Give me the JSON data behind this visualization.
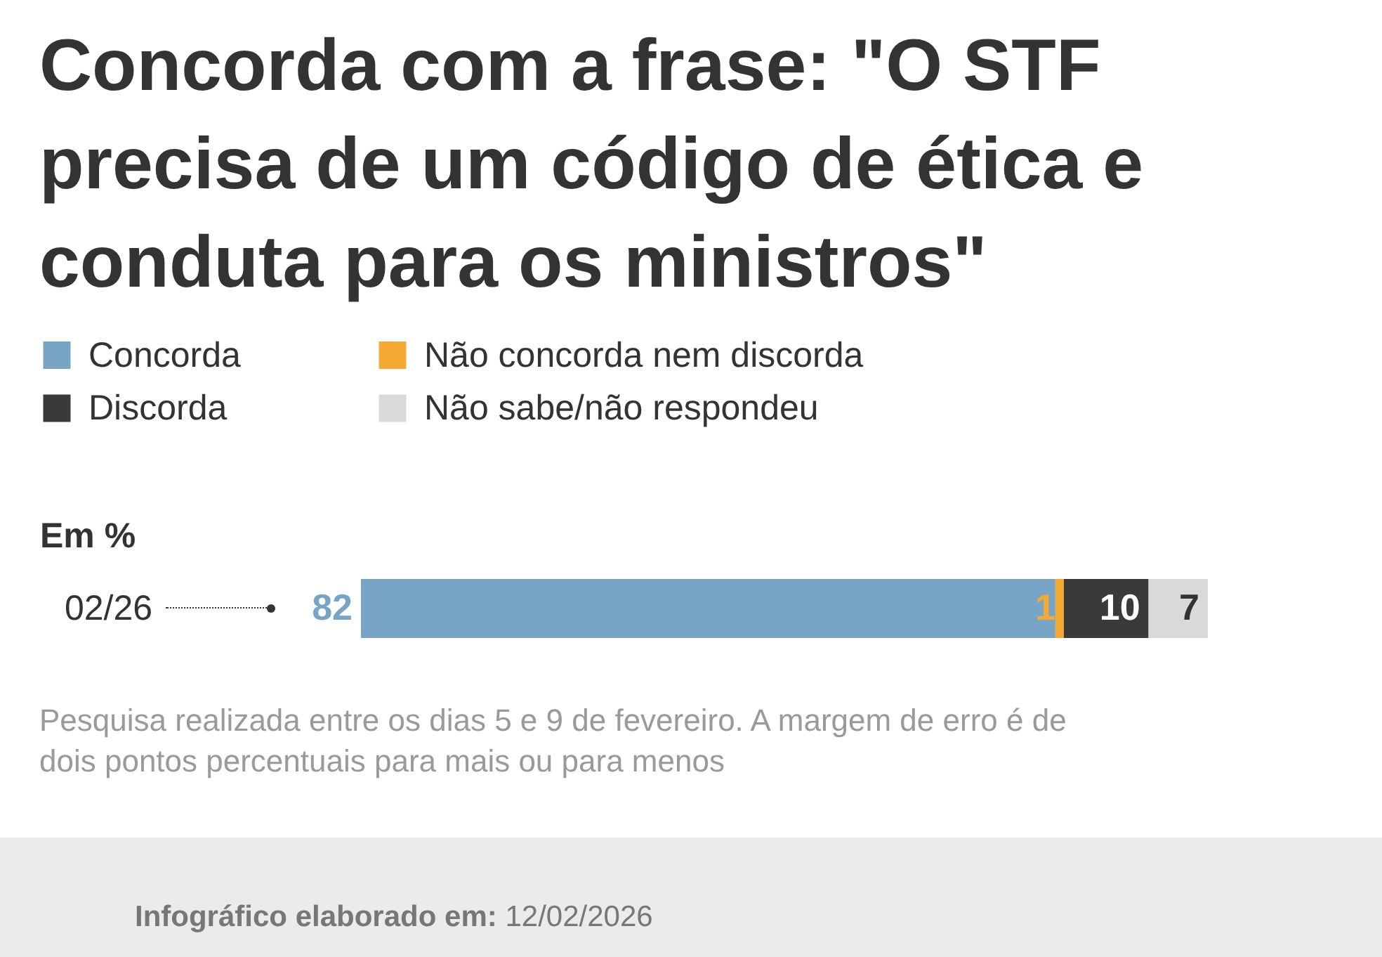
{
  "chart_data": {
    "type": "bar",
    "orientation": "horizontal",
    "stacked": true,
    "title": "Concorda com a frase: \"O STF precisa de um código de ética e conduta para os ministros\"",
    "ylabel": "Em %",
    "categories": [
      "02/26"
    ],
    "series": [
      {
        "name": "Concorda",
        "color": "#78a5c6",
        "values": [
          82
        ]
      },
      {
        "name": "Não concorda nem discorda",
        "color": "#f5a935",
        "values": [
          1
        ]
      },
      {
        "name": "Discorda",
        "color": "#3a3a3a",
        "values": [
          10
        ]
      },
      {
        "name": "Não sabe/não respondeu",
        "color": "#d9d9d9",
        "values": [
          7
        ]
      }
    ],
    "data_labels": true,
    "legend": "top left",
    "annotations": [
      "Pesquisa realizada entre os dias 5 e 9 de fevereiro. A margem de erro é de dois pontos percentuais para mais ou para menos",
      "Infográfico elaborado em: 12/02/2026"
    ]
  }
}
